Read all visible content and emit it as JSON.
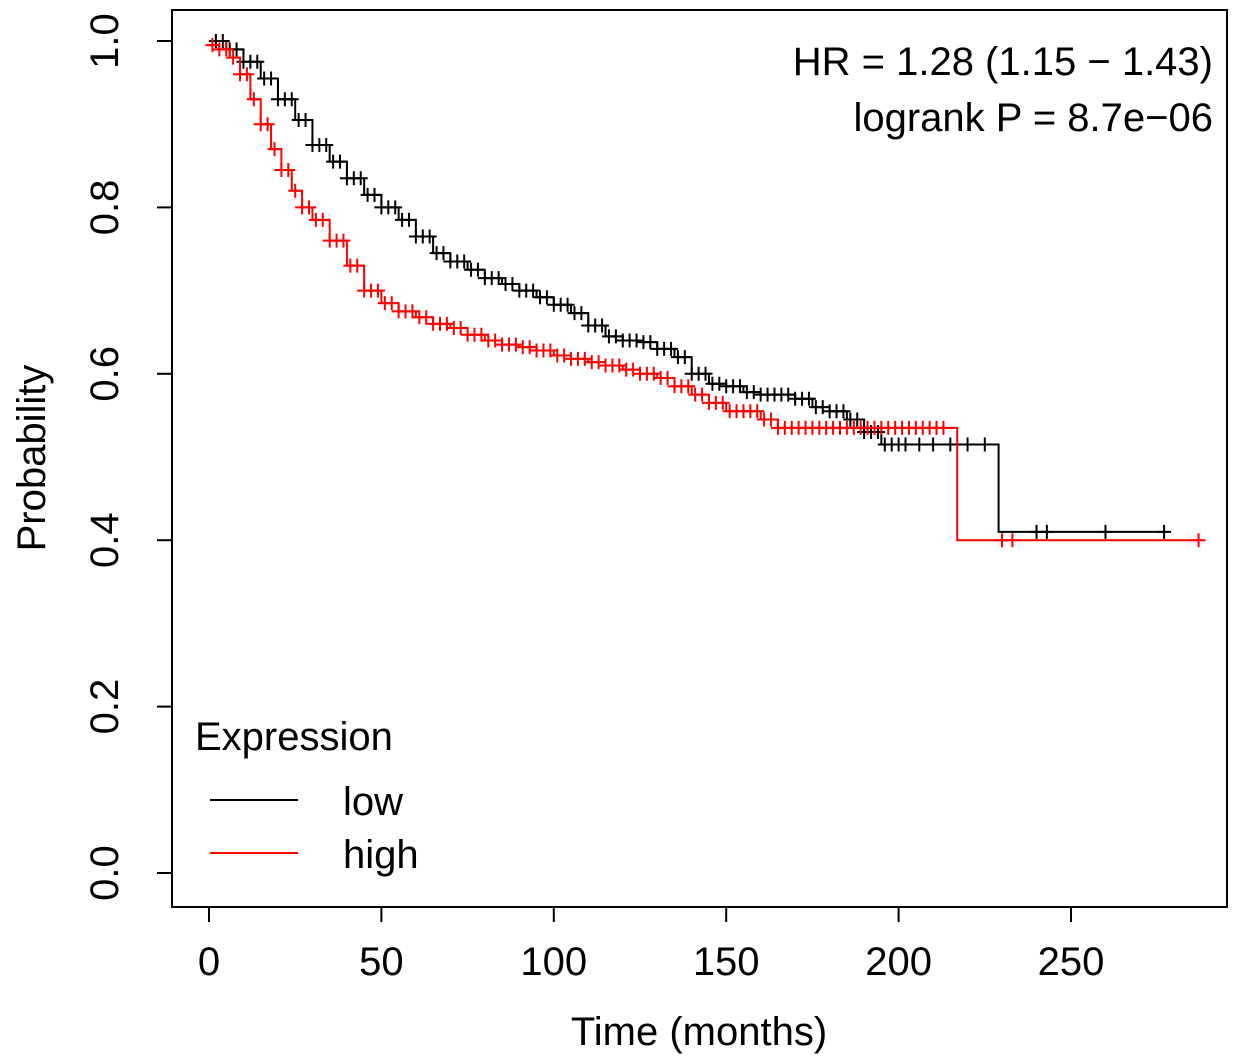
{
  "chart_data": {
    "type": "line",
    "subtype": "kaplan-meier",
    "xlabel": "Time (months)",
    "ylabel": "Probability",
    "xlim": [
      0,
      290
    ],
    "ylim": [
      0,
      1
    ],
    "xticks": [
      0,
      50,
      100,
      150,
      200,
      250
    ],
    "yticks": [
      0.0,
      0.2,
      0.4,
      0.6,
      0.8,
      1.0
    ],
    "xtick_labels": [
      "0",
      "50",
      "100",
      "150",
      "200",
      "250"
    ],
    "ytick_labels": [
      "0.0",
      "0.2",
      "0.4",
      "0.6",
      "0.8",
      "1.0"
    ],
    "grid": false,
    "legend_position": "bottom-left",
    "annotations": [
      "HR = 1.28 (1.15 − 1.43)",
      "logrank P = 8.7e−06"
    ],
    "legend": {
      "title": "Expression",
      "entries": [
        {
          "label": "low",
          "color": "#000000"
        },
        {
          "label": "high",
          "color": "#ff0000"
        }
      ]
    },
    "series": [
      {
        "name": "low",
        "color": "#000000",
        "steps": [
          [
            0,
            1.0
          ],
          [
            5,
            0.99
          ],
          [
            10,
            0.975
          ],
          [
            15,
            0.955
          ],
          [
            20,
            0.93
          ],
          [
            25,
            0.905
          ],
          [
            30,
            0.875
          ],
          [
            35,
            0.855
          ],
          [
            40,
            0.835
          ],
          [
            45,
            0.815
          ],
          [
            50,
            0.8
          ],
          [
            55,
            0.785
          ],
          [
            60,
            0.765
          ],
          [
            65,
            0.745
          ],
          [
            70,
            0.735
          ],
          [
            75,
            0.725
          ],
          [
            80,
            0.715
          ],
          [
            85,
            0.708
          ],
          [
            90,
            0.7
          ],
          [
            95,
            0.692
          ],
          [
            100,
            0.683
          ],
          [
            105,
            0.673
          ],
          [
            110,
            0.658
          ],
          [
            115,
            0.645
          ],
          [
            120,
            0.64
          ],
          [
            125,
            0.638
          ],
          [
            130,
            0.63
          ],
          [
            135,
            0.62
          ],
          [
            140,
            0.6
          ],
          [
            145,
            0.588
          ],
          [
            150,
            0.585
          ],
          [
            155,
            0.578
          ],
          [
            160,
            0.575
          ],
          [
            170,
            0.57
          ],
          [
            175,
            0.56
          ],
          [
            180,
            0.555
          ],
          [
            185,
            0.545
          ],
          [
            190,
            0.53
          ],
          [
            195,
            0.515
          ],
          [
            229,
            0.41
          ],
          [
            278,
            0.41
          ]
        ],
        "censor_x": [
          2,
          4,
          6,
          8,
          10,
          12,
          14,
          16,
          18,
          20,
          22,
          24,
          26,
          28,
          30,
          32,
          34,
          36,
          38,
          40,
          42,
          44,
          46,
          48,
          50,
          52,
          54,
          56,
          58,
          60,
          62,
          64,
          66,
          68,
          70,
          72,
          74,
          76,
          78,
          80,
          82,
          84,
          86,
          88,
          90,
          92,
          94,
          96,
          98,
          100,
          102,
          104,
          106,
          108,
          110,
          112,
          114,
          116,
          118,
          120,
          122,
          124,
          126,
          128,
          130,
          132,
          134,
          136,
          138,
          140,
          142,
          144,
          146,
          148,
          150,
          152,
          154,
          156,
          158,
          160,
          162,
          164,
          166,
          168,
          170,
          172,
          174,
          176,
          178,
          180,
          182,
          184,
          186,
          188,
          190,
          192,
          194,
          196,
          198,
          200,
          202,
          206,
          210,
          215,
          220,
          225,
          240,
          243,
          260,
          277
        ]
      },
      {
        "name": "high",
        "color": "#ff0000",
        "steps": [
          [
            0,
            0.995
          ],
          [
            3,
            0.99
          ],
          [
            6,
            0.98
          ],
          [
            9,
            0.96
          ],
          [
            12,
            0.93
          ],
          [
            15,
            0.9
          ],
          [
            18,
            0.87
          ],
          [
            21,
            0.845
          ],
          [
            24,
            0.82
          ],
          [
            27,
            0.8
          ],
          [
            30,
            0.785
          ],
          [
            35,
            0.76
          ],
          [
            40,
            0.73
          ],
          [
            45,
            0.7
          ],
          [
            50,
            0.685
          ],
          [
            55,
            0.675
          ],
          [
            60,
            0.668
          ],
          [
            65,
            0.66
          ],
          [
            70,
            0.655
          ],
          [
            75,
            0.647
          ],
          [
            80,
            0.64
          ],
          [
            85,
            0.635
          ],
          [
            90,
            0.632
          ],
          [
            95,
            0.628
          ],
          [
            100,
            0.622
          ],
          [
            105,
            0.618
          ],
          [
            110,
            0.614
          ],
          [
            115,
            0.61
          ],
          [
            120,
            0.605
          ],
          [
            125,
            0.6
          ],
          [
            130,
            0.595
          ],
          [
            135,
            0.585
          ],
          [
            140,
            0.575
          ],
          [
            145,
            0.565
          ],
          [
            150,
            0.555
          ],
          [
            160,
            0.545
          ],
          [
            165,
            0.535
          ],
          [
            175,
            0.535
          ],
          [
            217,
            0.4
          ],
          [
            288,
            0.4
          ]
        ],
        "censor_x": [
          1,
          3,
          5,
          7,
          9,
          11,
          13,
          15,
          17,
          19,
          21,
          23,
          25,
          27,
          29,
          31,
          33,
          35,
          37,
          39,
          41,
          43,
          45,
          47,
          49,
          51,
          53,
          55,
          57,
          59,
          61,
          63,
          65,
          67,
          69,
          71,
          73,
          75,
          77,
          79,
          81,
          83,
          85,
          87,
          89,
          91,
          93,
          95,
          97,
          99,
          101,
          103,
          105,
          107,
          109,
          111,
          113,
          115,
          117,
          119,
          121,
          123,
          125,
          127,
          129,
          131,
          133,
          135,
          137,
          139,
          141,
          143,
          145,
          147,
          149,
          151,
          153,
          155,
          157,
          159,
          161,
          163,
          165,
          167,
          169,
          171,
          173,
          175,
          177,
          179,
          181,
          183,
          185,
          187,
          189,
          191,
          193,
          195,
          197,
          199,
          201,
          203,
          205,
          207,
          209,
          211,
          213,
          230,
          233,
          287
        ]
      }
    ]
  }
}
